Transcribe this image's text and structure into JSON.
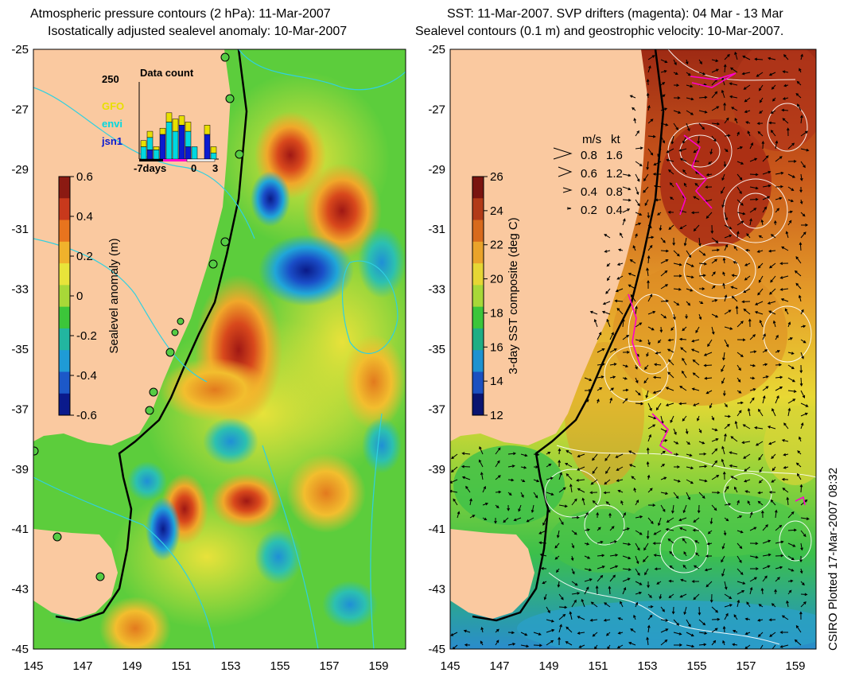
{
  "titles": {
    "left_line1": "Atmospheric pressure contours (2 hPa): 11-Mar-2007",
    "left_line2": "Isostatically adjusted sealevel anomaly: 10-Mar-2007",
    "right_line1": "SST: 11-Mar-2007. SVP drifters (magenta): 04 Mar - 13 Mar",
    "right_line2": "Sealevel contours (0.1 m) and geostrophic velocity: 10-Mar-2007."
  },
  "axes": {
    "lat_labels": [
      "-25",
      "-27",
      "-29",
      "-31",
      "-33",
      "-35",
      "-37",
      "-39",
      "-41",
      "-43",
      "-45"
    ],
    "lon_labels": [
      "145",
      "147",
      "149",
      "151",
      "153",
      "155",
      "157",
      "159"
    ]
  },
  "left_colorbar": {
    "label": "Sealevel anomaly (m)",
    "ticks": [
      "0.6",
      "0.4",
      "0.2",
      "0",
      "-0.2",
      "-0.4",
      "-0.6"
    ],
    "colors": [
      "#8b1a12",
      "#c8391c",
      "#e8741e",
      "#f0b22c",
      "#e8e43a",
      "#a8d838",
      "#3cc63a",
      "#22b6a0",
      "#1f9bd6",
      "#1c58c8",
      "#0a1a8c"
    ]
  },
  "right_colorbar": {
    "label": "3-day SST composite (deg C)",
    "ticks": [
      "26",
      "24",
      "22",
      "20",
      "18",
      "16",
      "14",
      "12"
    ],
    "colors": [
      "#7a1410",
      "#b23a18",
      "#d86a1c",
      "#eaa32a",
      "#e6d634",
      "#a8d838",
      "#3cc63a",
      "#1fae84",
      "#1e92d0",
      "#1c50c0",
      "#0a1470"
    ]
  },
  "data_count": {
    "title": "Data count",
    "max_label": "250",
    "legend": [
      "GFO",
      "envi",
      "jsn1"
    ],
    "legend_colors": [
      "#e8e000",
      "#00d8e0",
      "#0a1ad0"
    ],
    "axis_labels": [
      "-7days",
      "0",
      "3"
    ],
    "bars": [
      {
        "jsn1": 0,
        "envi": 40,
        "gfo": 20
      },
      {
        "jsn1": 30,
        "envi": 40,
        "gfo": 20
      },
      {
        "jsn1": 0,
        "envi": 30,
        "gfo": 10
      },
      {
        "jsn1": 80,
        "envi": 0,
        "gfo": 20
      },
      {
        "jsn1": 0,
        "envi": 120,
        "gfo": 30
      },
      {
        "jsn1": 0,
        "envi": 90,
        "gfo": 40
      },
      {
        "jsn1": 110,
        "envi": 0,
        "gfo": 30
      },
      {
        "jsn1": 40,
        "envi": 50,
        "gfo": 30
      },
      {
        "jsn1": 0,
        "envi": 40,
        "gfo": 0
      },
      {
        "jsn1": 0,
        "envi": 0,
        "gfo": 0
      },
      {
        "jsn1": 80,
        "envi": 0,
        "gfo": 30
      },
      {
        "jsn1": 0,
        "envi": 20,
        "gfo": 20
      }
    ]
  },
  "velocity_key": {
    "headers": [
      "m/s",
      "kt"
    ],
    "rows": [
      [
        "0.8",
        "1.6"
      ],
      [
        "0.6",
        "1.2"
      ],
      [
        "0.4",
        "0.8"
      ],
      [
        "0.2",
        "0.4"
      ]
    ]
  },
  "colors": {
    "land": "#fac9a0",
    "coast_tide_gauge": "#55cc44",
    "drifter": "#ff00cc",
    "contour_left": "#30d0e0",
    "contour_right": "#ffffff"
  },
  "credit": "CSIRO Plotted 17-Mar-2007 08:32"
}
